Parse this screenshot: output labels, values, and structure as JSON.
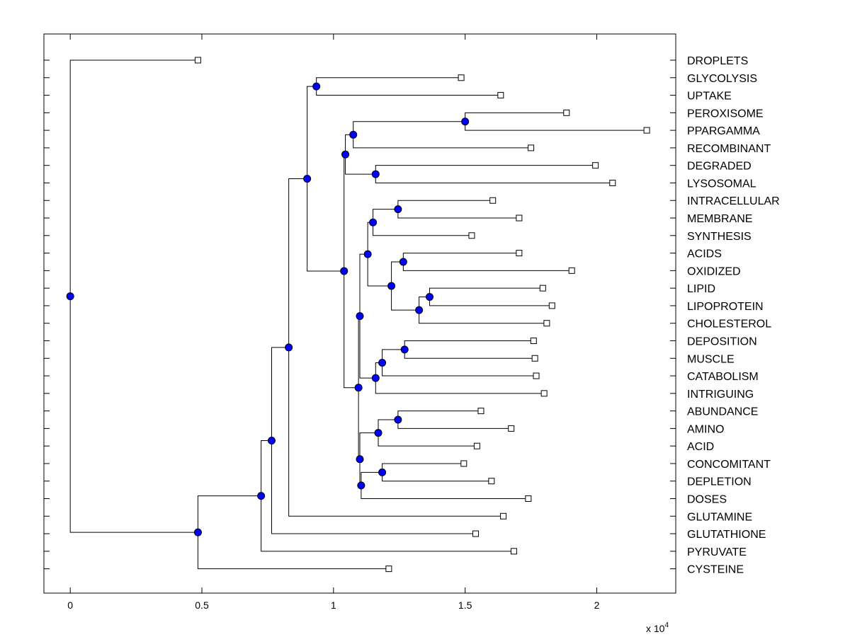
{
  "chart_data": {
    "type": "dendrogram",
    "title": "",
    "xlabel": "",
    "ylabel": "",
    "x_multiplier": "x 10",
    "x_multiplier_exponent": "4",
    "xlim": [
      -1000,
      23000
    ],
    "xticks": [
      0,
      0.5,
      1,
      1.5,
      2
    ],
    "xtick_labels": [
      "0",
      "0.5",
      "1",
      "1.5",
      "2"
    ],
    "grid": false,
    "colors": {
      "node_fill": "#0000ff",
      "leaf_fill": "#ffffff",
      "line": "#000000"
    },
    "leaves": [
      {
        "name": "DROPLETS",
        "x": 4850
      },
      {
        "name": "GLYCOLYSIS",
        "x": 14850
      },
      {
        "name": "UPTAKE",
        "x": 16350
      },
      {
        "name": "PEROXISOME",
        "x": 18850
      },
      {
        "name": "PPARGAMMA",
        "x": 21900
      },
      {
        "name": "RECOMBINANT",
        "x": 17500
      },
      {
        "name": "DEGRADED",
        "x": 19950
      },
      {
        "name": "LYSOSOMAL",
        "x": 20600
      },
      {
        "name": "INTRACELLULAR",
        "x": 16050
      },
      {
        "name": "MEMBRANE",
        "x": 17050
      },
      {
        "name": "SYNTHESIS",
        "x": 15250
      },
      {
        "name": "ACIDS",
        "x": 17050
      },
      {
        "name": "OXIDIZED",
        "x": 19050
      },
      {
        "name": "LIPID",
        "x": 17950
      },
      {
        "name": "LIPOPROTEIN",
        "x": 18300
      },
      {
        "name": "CHOLESTEROL",
        "x": 18100
      },
      {
        "name": "DEPOSITION",
        "x": 17600
      },
      {
        "name": "MUSCLE",
        "x": 17650
      },
      {
        "name": "CATABOLISM",
        "x": 17700
      },
      {
        "name": "INTRIGUING",
        "x": 18000
      },
      {
        "name": "ABUNDANCE",
        "x": 15600
      },
      {
        "name": "AMINO",
        "x": 16750
      },
      {
        "name": "ACID",
        "x": 15450
      },
      {
        "name": "CONCOMITANT",
        "x": 14950
      },
      {
        "name": "DEPLETION",
        "x": 16000
      },
      {
        "name": "DOSES",
        "x": 17400
      },
      {
        "name": "GLUTAMINE",
        "x": 16450
      },
      {
        "name": "GLUTATHIONE",
        "x": 15400
      },
      {
        "name": "PYRUVATE",
        "x": 16850
      },
      {
        "name": "CYSTEINE",
        "x": 12100
      }
    ],
    "nodes": [
      {
        "id": "root",
        "x": 0,
        "children": [
          "DROPLETS",
          "n_a"
        ]
      },
      {
        "id": "n_a",
        "x": 4850,
        "children": [
          "n_b",
          "CYSTEINE"
        ]
      },
      {
        "id": "n_b",
        "x": 7250,
        "children": [
          "n_c",
          "PYRUVATE"
        ]
      },
      {
        "id": "n_c",
        "x": 7650,
        "children": [
          "n_d",
          "GLUTATHIONE"
        ]
      },
      {
        "id": "n_d",
        "x": 8300,
        "children": [
          "n_e",
          "GLUTAMINE"
        ]
      },
      {
        "id": "n_e",
        "x": 9000,
        "children": [
          "n_gu",
          "n_f"
        ]
      },
      {
        "id": "n_gu",
        "x": 9350,
        "children": [
          "GLYCOLYSIS",
          "UPTAKE"
        ]
      },
      {
        "id": "n_f",
        "x": 10400,
        "children": [
          "n_g",
          "n_h"
        ]
      },
      {
        "id": "n_g",
        "x": 10450,
        "children": [
          "n_g1",
          "n_dl"
        ]
      },
      {
        "id": "n_g1",
        "x": 10750,
        "children": [
          "n_pp",
          "RECOMBINANT"
        ]
      },
      {
        "id": "n_pp",
        "x": 15000,
        "children": [
          "PEROXISOME",
          "PPARGAMMA"
        ]
      },
      {
        "id": "n_dl",
        "x": 11600,
        "children": [
          "DEGRADED",
          "LYSOSOMAL"
        ]
      },
      {
        "id": "n_h",
        "x": 10950,
        "children": [
          "n_i",
          "n_j"
        ]
      },
      {
        "id": "n_i",
        "x": 11000,
        "children": [
          "n_k",
          "n_l"
        ]
      },
      {
        "id": "n_k",
        "x": 11300,
        "children": [
          "n_m",
          "n_n"
        ]
      },
      {
        "id": "n_m",
        "x": 11500,
        "children": [
          "n_im",
          "SYNTHESIS"
        ]
      },
      {
        "id": "n_im",
        "x": 12450,
        "children": [
          "INTRACELLULAR",
          "MEMBRANE"
        ]
      },
      {
        "id": "n_n",
        "x": 12200,
        "children": [
          "n_ao",
          "n_o"
        ]
      },
      {
        "id": "n_ao",
        "x": 12650,
        "children": [
          "ACIDS",
          "OXIDIZED"
        ]
      },
      {
        "id": "n_o",
        "x": 13250,
        "children": [
          "n_ll",
          "CHOLESTEROL"
        ]
      },
      {
        "id": "n_ll",
        "x": 13650,
        "children": [
          "LIPID",
          "LIPOPROTEIN"
        ]
      },
      {
        "id": "n_l",
        "x": 11600,
        "children": [
          "n_p",
          "INTRIGUING"
        ]
      },
      {
        "id": "n_p",
        "x": 11850,
        "children": [
          "n_q",
          "CATABOLISM"
        ]
      },
      {
        "id": "n_q",
        "x": 12700,
        "children": [
          "DEPOSITION",
          "MUSCLE"
        ]
      },
      {
        "id": "n_r",
        "x": 11700,
        "children": [
          "n_aa",
          "ACID"
        ]
      },
      {
        "id": "n_aa",
        "x": 12450,
        "children": [
          "ABUNDANCE",
          "AMINO"
        ]
      },
      {
        "id": "n_j",
        "x": 11000,
        "children": [
          "n_r",
          "n_s"
        ]
      },
      {
        "id": "n_s",
        "x": 11050,
        "children": [
          "n_cd",
          "DOSES"
        ]
      },
      {
        "id": "n_cd",
        "x": 11850,
        "children": [
          "CONCOMITANT",
          "DEPLETION"
        ]
      }
    ]
  }
}
